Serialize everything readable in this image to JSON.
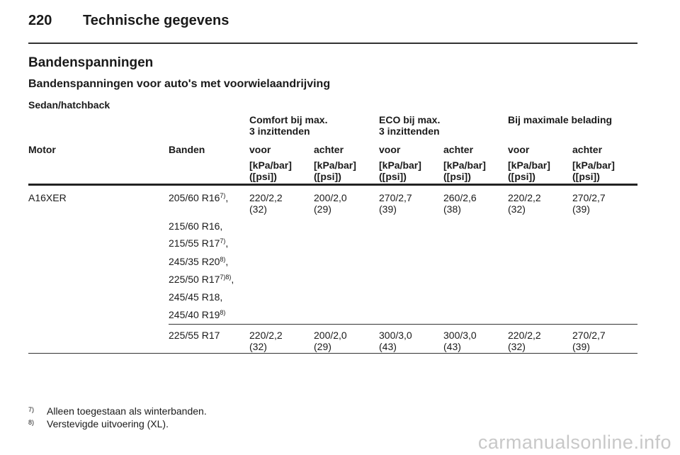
{
  "header": {
    "page_number": "220",
    "chapter": "Technische gegevens"
  },
  "section_title": "Bandenspanningen",
  "subsection_title": "Bandenspanningen voor auto's met voorwielaandrijving",
  "body_type": "Sedan/hatchback",
  "table": {
    "group_headers": [
      {
        "line1": "Comfort bij max.",
        "line2": "3 inzittenden"
      },
      {
        "line1": "ECO bij max.",
        "line2": "3 inzittenden"
      },
      {
        "line1": "Bij maximale belading",
        "line2": ""
      }
    ],
    "columns": [
      "Motor",
      "Banden",
      "voor",
      "achter",
      "voor",
      "achter",
      "voor",
      "achter"
    ],
    "unit": {
      "line1": "[kPa/bar]",
      "line2": "([psi])"
    },
    "rows": [
      {
        "motor": "A16XER",
        "tires": [
          {
            "size": "205/60 R16",
            "sup": "7)",
            "suffix": ","
          },
          {
            "size": "215/60 R16",
            "sup": "",
            "suffix": ","
          },
          {
            "size": "215/55 R17",
            "sup": "7)",
            "suffix": ","
          },
          {
            "size": "245/35 R20",
            "sup": "8)",
            "suffix": ","
          },
          {
            "size": "225/50 R17",
            "sup": "7)8)",
            "suffix": ","
          },
          {
            "size": "245/45 R18",
            "sup": "",
            "suffix": ","
          },
          {
            "size": "245/40 R19",
            "sup": "8)",
            "suffix": ""
          }
        ],
        "values": [
          {
            "main": "220/2,2",
            "psi": "(32)"
          },
          {
            "main": "200/2,0",
            "psi": "(29)"
          },
          {
            "main": "270/2,7",
            "psi": "(39)"
          },
          {
            "main": "260/2,6",
            "psi": "(38)"
          },
          {
            "main": "220/2,2",
            "psi": "(32)"
          },
          {
            "main": "270/2,7",
            "psi": "(39)"
          }
        ]
      },
      {
        "motor": "",
        "tires": [
          {
            "size": "225/55 R17",
            "sup": "",
            "suffix": ""
          }
        ],
        "values": [
          {
            "main": "220/2,2",
            "psi": "(32)"
          },
          {
            "main": "200/2,0",
            "psi": "(29)"
          },
          {
            "main": "300/3,0",
            "psi": "(43)"
          },
          {
            "main": "300/3,0",
            "psi": "(43)"
          },
          {
            "main": "220/2,2",
            "psi": "(32)"
          },
          {
            "main": "270/2,7",
            "psi": "(39)"
          }
        ]
      }
    ]
  },
  "footnotes": [
    {
      "mark": "7)",
      "text": "Alleen toegestaan als winterbanden."
    },
    {
      "mark": "8)",
      "text": "Verstevigde uitvoering (XL)."
    }
  ],
  "watermark": "carmanualsonline.info"
}
